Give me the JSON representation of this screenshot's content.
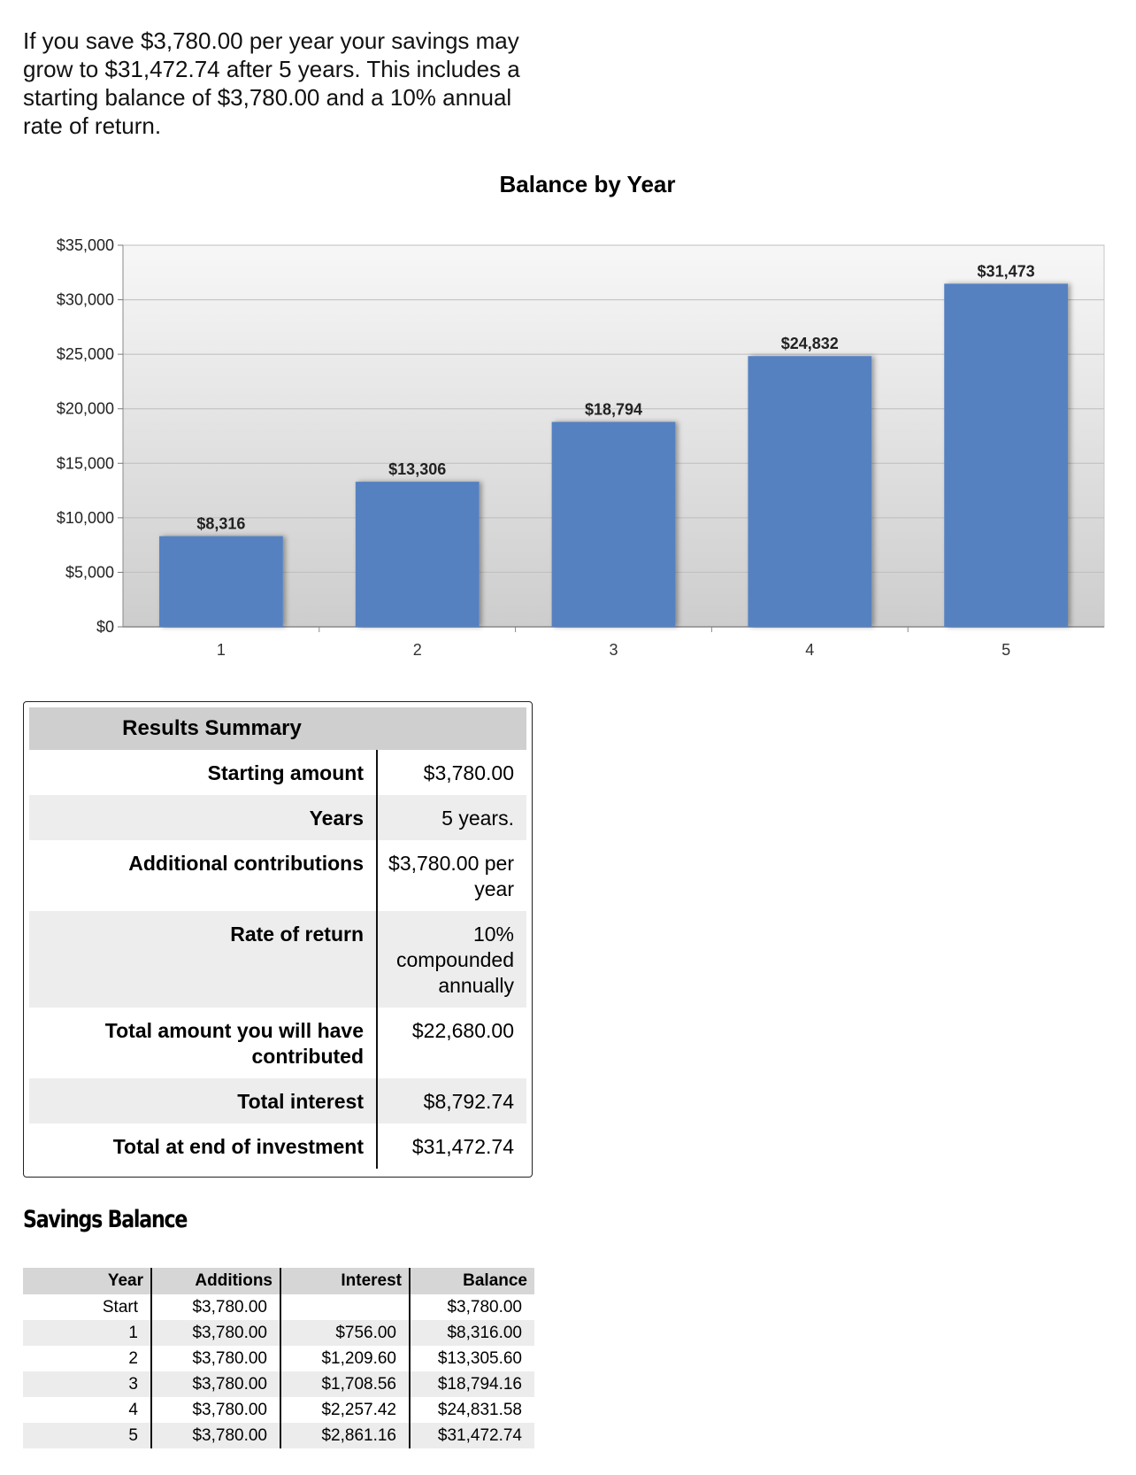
{
  "intro_text": "If you save $3,780.00 per year your savings may grow to $31,472.74 after 5 years. This includes a starting balance of $3,780.00 and a 10% annual rate of return.",
  "chart_data": {
    "type": "bar",
    "title": "Balance by Year",
    "categories": [
      "1",
      "2",
      "3",
      "4",
      "5"
    ],
    "values": [
      8316,
      13306,
      18794,
      24832,
      31473
    ],
    "data_labels": [
      "$8,316",
      "$13,306",
      "$18,794",
      "$24,832",
      "$31,473"
    ],
    "ylim": [
      0,
      35000
    ],
    "y_ticks": [
      0,
      5000,
      10000,
      15000,
      20000,
      25000,
      30000,
      35000
    ],
    "y_tick_labels": [
      "$0",
      "$5,000",
      "$10,000",
      "$15,000",
      "$20,000",
      "$25,000",
      "$30,000",
      "$35,000"
    ],
    "xlabel": "",
    "ylabel": "",
    "grid": true,
    "bar_color": "#5581c1"
  },
  "summary": {
    "title": "Results Summary",
    "rows": [
      {
        "label": "Starting amount",
        "value": "$3,780.00"
      },
      {
        "label": "Years",
        "value": "5 years."
      },
      {
        "label": "Additional contributions",
        "value": "$3,780.00 per year"
      },
      {
        "label": "Rate of return",
        "value": "10% compounded annually"
      },
      {
        "label": "Total amount you will have contributed",
        "value": "$22,680.00"
      },
      {
        "label": "Total interest",
        "value": "$8,792.74"
      },
      {
        "label": "Total at end of investment",
        "value": "$31,472.74"
      }
    ]
  },
  "savings": {
    "title": "Savings Balance",
    "headers": [
      "Year",
      "Additions",
      "Interest",
      "Balance"
    ],
    "rows": [
      [
        "Start",
        "$3,780.00",
        "",
        "$3,780.00"
      ],
      [
        "1",
        "$3,780.00",
        "$756.00",
        "$8,316.00"
      ],
      [
        "2",
        "$3,780.00",
        "$1,209.60",
        "$13,305.60"
      ],
      [
        "3",
        "$3,780.00",
        "$1,708.56",
        "$18,794.16"
      ],
      [
        "4",
        "$3,780.00",
        "$2,257.42",
        "$24,831.58"
      ],
      [
        "5",
        "$3,780.00",
        "$2,861.16",
        "$31,472.74"
      ]
    ]
  }
}
